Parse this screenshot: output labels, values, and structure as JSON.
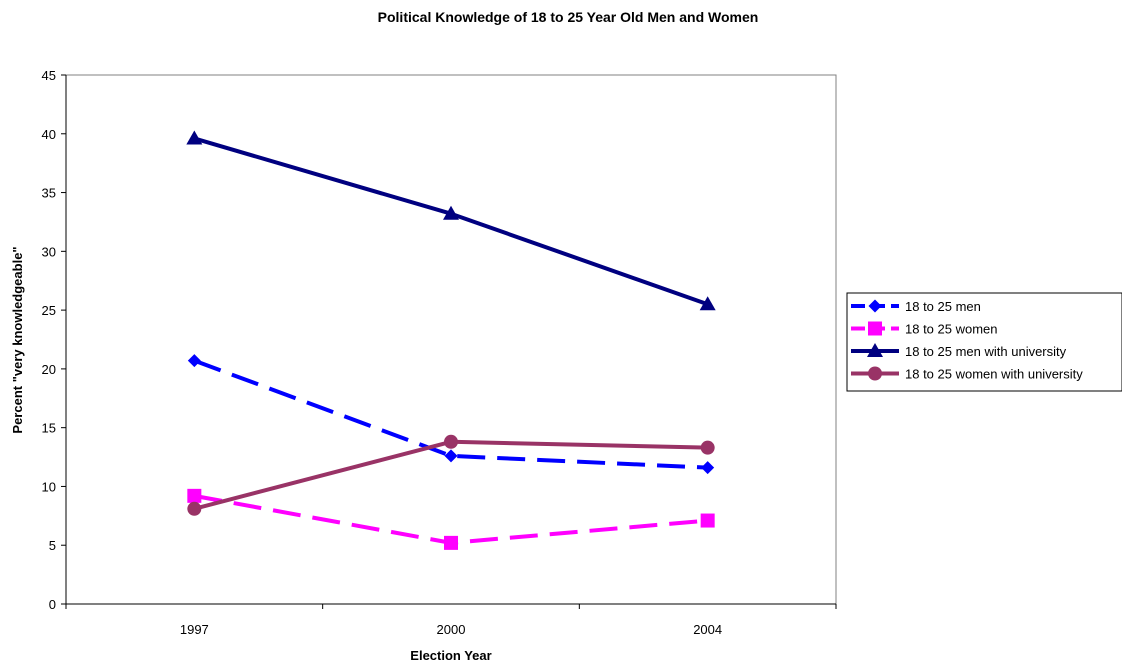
{
  "chart_data": {
    "type": "line",
    "title": "Political Knowledge of 18 to 25 Year Old Men and Women",
    "xlabel": "Election Year",
    "ylabel": "Percent \"very knowledgeable\"",
    "categories": [
      "1997",
      "2000",
      "2004"
    ],
    "ylim": [
      0,
      45
    ],
    "yticks": [
      0,
      5,
      10,
      15,
      20,
      25,
      30,
      35,
      40,
      45
    ],
    "grid": false,
    "legend_position": "right",
    "series": [
      {
        "name": "18 to 25 men",
        "values": [
          20.7,
          12.6,
          11.6
        ],
        "color": "#0000FF",
        "dash": "dashed",
        "marker": "diamond"
      },
      {
        "name": "18 to 25 women",
        "values": [
          9.2,
          5.2,
          7.1
        ],
        "color": "#FF00FF",
        "dash": "dashed",
        "marker": "square"
      },
      {
        "name": "18 to 25 men with university",
        "values": [
          39.6,
          33.2,
          25.5
        ],
        "color": "#000080",
        "dash": "solid",
        "marker": "triangle"
      },
      {
        "name": "18 to 25 women with university",
        "values": [
          8.1,
          13.8,
          13.3
        ],
        "color": "#993366",
        "dash": "solid",
        "marker": "circle"
      }
    ]
  }
}
